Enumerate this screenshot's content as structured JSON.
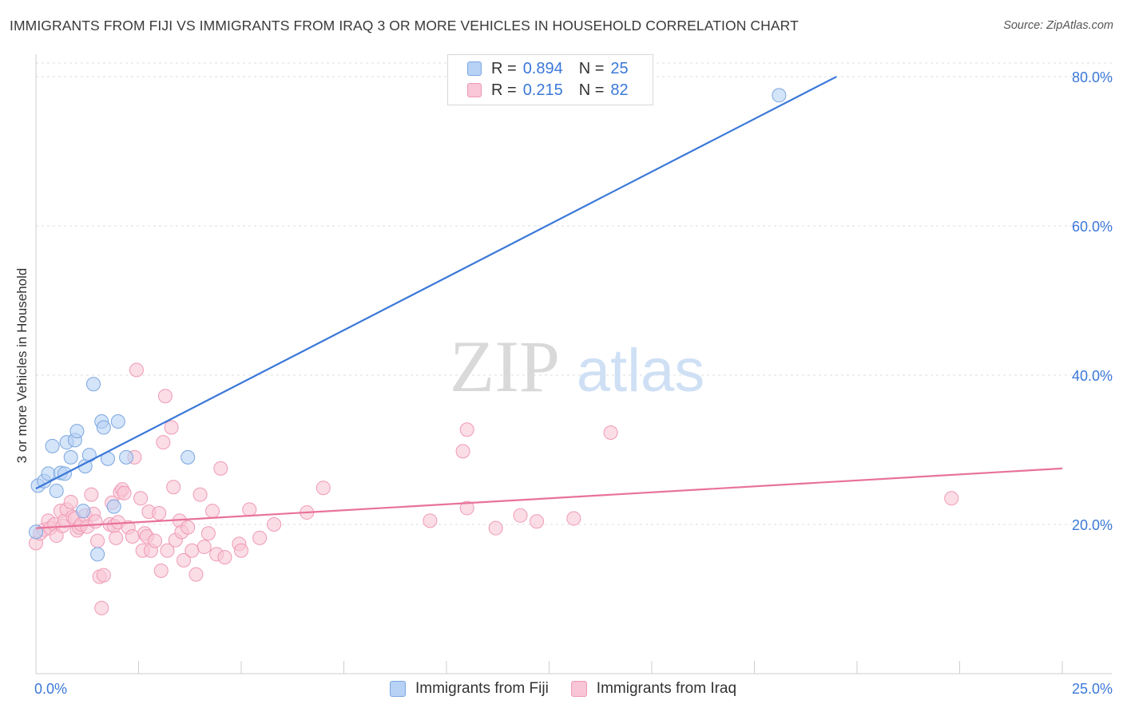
{
  "title": "IMMIGRANTS FROM FIJI VS IMMIGRANTS FROM IRAQ 3 OR MORE VEHICLES IN HOUSEHOLD CORRELATION CHART",
  "source": "Source: ZipAtlas.com",
  "watermark": {
    "zip": "ZIP",
    "atlas": "atlas"
  },
  "colors": {
    "fiji": "#3b78d8",
    "fiji_fill": "#b7d2f5",
    "iraq": "#e8729a",
    "iraq_fill": "#f8c6d6",
    "axis_text": "#3b78d8"
  },
  "legend": [
    {
      "r_label": "R =",
      "r_value": "0.894",
      "n_label": "N =",
      "n_value": "25"
    },
    {
      "r_label": "R =",
      "r_value": "0.215",
      "n_label": "N =",
      "n_value": "82"
    }
  ],
  "series_labels": {
    "fiji": "Immigrants from Fiji",
    "iraq": "Immigrants from Iraq"
  },
  "chart_data": {
    "type": "scatter",
    "xlabel": "",
    "ylabel": "3 or more Vehicles in Household",
    "xlim": [
      0,
      25
    ],
    "ylim": [
      0,
      83
    ],
    "x_tick_labels": [
      "0.0%",
      "25.0%"
    ],
    "y_ticks": [
      20,
      40,
      60,
      80
    ],
    "y_tick_labels": [
      "20.0%",
      "40.0%",
      "60.0%",
      "80.0%"
    ],
    "series": [
      {
        "name": "Immigrants from Fiji",
        "trend": {
          "x": [
            0,
            19.5
          ],
          "y": [
            24.8,
            80.0
          ]
        },
        "points": [
          [
            0.0,
            19.0
          ],
          [
            0.05,
            25.2
          ],
          [
            0.2,
            25.8
          ],
          [
            0.3,
            26.8
          ],
          [
            0.4,
            30.5
          ],
          [
            0.5,
            24.5
          ],
          [
            0.6,
            26.9
          ],
          [
            0.7,
            26.8
          ],
          [
            0.75,
            31.0
          ],
          [
            0.85,
            29.0
          ],
          [
            0.95,
            31.3
          ],
          [
            1.0,
            32.5
          ],
          [
            1.15,
            21.8
          ],
          [
            1.2,
            27.8
          ],
          [
            1.3,
            29.3
          ],
          [
            1.4,
            38.8
          ],
          [
            1.5,
            16.0
          ],
          [
            1.6,
            33.8
          ],
          [
            1.65,
            33.0
          ],
          [
            1.75,
            28.8
          ],
          [
            1.9,
            22.4
          ],
          [
            2.0,
            33.8
          ],
          [
            2.2,
            29.0
          ],
          [
            3.7,
            29.0
          ],
          [
            18.1,
            77.5
          ]
        ]
      },
      {
        "name": "Immigrants from Iraq",
        "trend": {
          "x": [
            0,
            25
          ],
          "y": [
            19.5,
            27.5
          ]
        },
        "points": [
          [
            0.0,
            17.5
          ],
          [
            0.1,
            18.8
          ],
          [
            0.2,
            19.3
          ],
          [
            0.3,
            20.5
          ],
          [
            0.35,
            19.5
          ],
          [
            0.45,
            20.0
          ],
          [
            0.5,
            18.5
          ],
          [
            0.6,
            21.8
          ],
          [
            0.65,
            19.8
          ],
          [
            0.7,
            20.5
          ],
          [
            0.75,
            22.0
          ],
          [
            0.85,
            23.0
          ],
          [
            0.9,
            21.0
          ],
          [
            0.95,
            20.8
          ],
          [
            1.0,
            19.2
          ],
          [
            1.05,
            19.6
          ],
          [
            1.1,
            20.0
          ],
          [
            1.2,
            21.2
          ],
          [
            1.25,
            19.7
          ],
          [
            1.35,
            24.0
          ],
          [
            1.4,
            21.4
          ],
          [
            1.45,
            20.4
          ],
          [
            1.5,
            17.8
          ],
          [
            1.55,
            13.0
          ],
          [
            1.6,
            8.8
          ],
          [
            1.65,
            13.2
          ],
          [
            1.8,
            20.0
          ],
          [
            1.85,
            22.9
          ],
          [
            1.9,
            19.8
          ],
          [
            1.95,
            18.2
          ],
          [
            2.0,
            20.3
          ],
          [
            2.05,
            24.3
          ],
          [
            2.1,
            24.7
          ],
          [
            2.15,
            24.2
          ],
          [
            2.25,
            19.6
          ],
          [
            2.35,
            18.4
          ],
          [
            2.4,
            29.0
          ],
          [
            2.45,
            40.7
          ],
          [
            2.55,
            23.5
          ],
          [
            2.6,
            16.5
          ],
          [
            2.65,
            18.8
          ],
          [
            2.7,
            18.4
          ],
          [
            2.75,
            21.7
          ],
          [
            2.8,
            16.5
          ],
          [
            2.9,
            17.8
          ],
          [
            3.0,
            21.5
          ],
          [
            3.05,
            13.8
          ],
          [
            3.1,
            31.0
          ],
          [
            3.15,
            37.2
          ],
          [
            3.2,
            16.5
          ],
          [
            3.3,
            33.0
          ],
          [
            3.35,
            25.0
          ],
          [
            3.4,
            17.9
          ],
          [
            3.5,
            20.5
          ],
          [
            3.55,
            19.0
          ],
          [
            3.6,
            15.2
          ],
          [
            3.7,
            19.6
          ],
          [
            3.8,
            16.5
          ],
          [
            3.9,
            13.3
          ],
          [
            4.0,
            24.0
          ],
          [
            4.1,
            17.0
          ],
          [
            4.2,
            18.8
          ],
          [
            4.3,
            21.8
          ],
          [
            4.4,
            16.0
          ],
          [
            4.5,
            27.5
          ],
          [
            4.6,
            15.6
          ],
          [
            4.95,
            17.4
          ],
          [
            5.0,
            16.5
          ],
          [
            5.2,
            22.0
          ],
          [
            5.45,
            18.2
          ],
          [
            5.8,
            20.0
          ],
          [
            6.6,
            21.6
          ],
          [
            7.0,
            24.9
          ],
          [
            9.6,
            20.5
          ],
          [
            10.4,
            29.8
          ],
          [
            10.5,
            32.7
          ],
          [
            10.5,
            22.2
          ],
          [
            11.2,
            19.5
          ],
          [
            11.8,
            21.2
          ],
          [
            12.2,
            20.4
          ],
          [
            13.1,
            20.8
          ],
          [
            14.0,
            32.3
          ],
          [
            22.3,
            23.5
          ]
        ]
      }
    ]
  }
}
